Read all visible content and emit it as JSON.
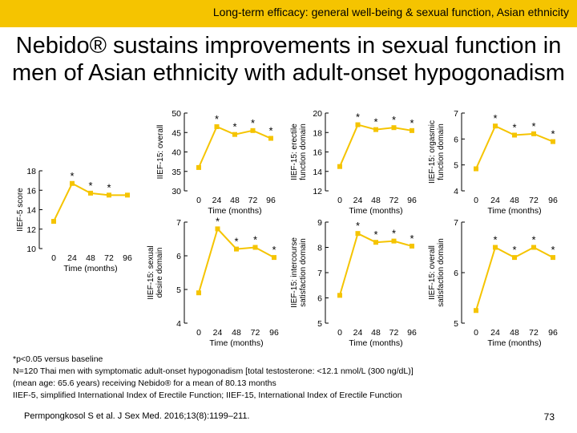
{
  "header": {
    "text": "Long-term efficacy: general well-being & sexual function, Asian ethnicity",
    "background": "#f5c400"
  },
  "title": {
    "line1": "Nebido® sustains improvements in sexual function in",
    "line2": "men of Asian ethnicity with adult-onset hypogonadism"
  },
  "colors": {
    "line": "#f5c400",
    "axis": "#000000"
  },
  "chart_data": [
    {
      "id": "iief5",
      "type": "line",
      "ylabel": "IIEF-5 score",
      "xlabel": "Time (months)",
      "x": [
        0,
        24,
        48,
        72,
        96
      ],
      "values": [
        12.8,
        16.7,
        15.7,
        15.5,
        15.5
      ],
      "significant": [
        "",
        "*",
        "*",
        "*",
        ""
      ],
      "ylim": [
        10,
        18
      ],
      "yticks": [
        10,
        12,
        14,
        16,
        18
      ],
      "xticks": [
        "0",
        "24",
        "48",
        "72",
        "96"
      ]
    },
    {
      "id": "overall",
      "type": "line",
      "ylabel": "IIEF-15: overall",
      "xlabel": "Time (months)",
      "x": [
        0,
        24,
        48,
        72,
        96
      ],
      "values": [
        36,
        46.5,
        44.5,
        45.5,
        43.5
      ],
      "significant": [
        "",
        "*",
        "*",
        "*",
        "*"
      ],
      "ylim": [
        30,
        50
      ],
      "yticks": [
        30,
        35,
        40,
        45,
        50
      ],
      "xticks": [
        "0",
        "24",
        "48",
        "72",
        "96"
      ]
    },
    {
      "id": "erectile",
      "type": "line",
      "ylabel": "IIEF-15: erectile function domain",
      "xlabel": "Time (months)",
      "x": [
        0,
        24,
        48,
        72,
        96
      ],
      "values": [
        14.5,
        18.8,
        18.3,
        18.5,
        18.2
      ],
      "significant": [
        "",
        "*",
        "*",
        "*",
        "*"
      ],
      "ylim": [
        12,
        20
      ],
      "yticks": [
        12,
        14,
        16,
        18,
        20
      ],
      "xticks": [
        "0",
        "24",
        "48",
        "72",
        "96"
      ]
    },
    {
      "id": "orgasmic",
      "type": "line",
      "ylabel": "IIEF-15: orgasmic function domain",
      "xlabel": "Time (months)",
      "x": [
        0,
        24,
        48,
        72,
        96
      ],
      "values": [
        4.85,
        6.5,
        6.15,
        6.2,
        5.9
      ],
      "significant": [
        "",
        "*",
        "*",
        "*",
        "*"
      ],
      "ylim": [
        4,
        7
      ],
      "yticks": [
        4,
        5,
        6,
        7
      ],
      "xticks": [
        "0",
        "24",
        "48",
        "72",
        "96"
      ]
    },
    {
      "id": "desire",
      "type": "line",
      "ylabel": "IIEF-15: sexual desire domain",
      "xlabel": "Time (months)",
      "x": [
        0,
        24,
        48,
        72,
        96
      ],
      "values": [
        4.9,
        6.8,
        6.2,
        6.25,
        5.95
      ],
      "significant": [
        "",
        "*",
        "*",
        "*",
        "*"
      ],
      "ylim": [
        4,
        7
      ],
      "yticks": [
        4,
        5,
        6,
        7
      ],
      "xticks": [
        "0",
        "24",
        "48",
        "72",
        "96"
      ]
    },
    {
      "id": "intercourse",
      "type": "line",
      "ylabel": "IIEF-15: intercourse satisfaction domain",
      "xlabel": "Time (months)",
      "x": [
        0,
        24,
        48,
        72,
        96
      ],
      "values": [
        6.1,
        8.55,
        8.2,
        8.25,
        8.05
      ],
      "significant": [
        "",
        "*",
        "*",
        "*",
        "*"
      ],
      "ylim": [
        5,
        9
      ],
      "yticks": [
        5,
        6,
        7,
        8,
        9
      ],
      "xticks": [
        "0",
        "24",
        "48",
        "72",
        "96"
      ]
    },
    {
      "id": "overall-satisfaction",
      "type": "line",
      "ylabel": "IIEF-15: overall satisfaction domain",
      "xlabel": "Time (months)",
      "x": [
        0,
        24,
        48,
        72,
        96
      ],
      "values": [
        5.25,
        6.5,
        6.3,
        6.5,
        6.3
      ],
      "significant": [
        "",
        "*",
        "*",
        "*",
        "*"
      ],
      "ylim": [
        5,
        7
      ],
      "yticks": [
        5,
        6,
        7
      ],
      "xticks": [
        "0",
        "24",
        "48",
        "72",
        "96"
      ]
    }
  ],
  "footnote": {
    "line1": "*p<0.05 versus baseline",
    "line2": "N=120 Thai men with symptomatic adult-onset hypogonadism [total testosterone: <12.1 nmol/L (300 ng/dL)]",
    "line3": "(mean age: 65.6 years) receiving Nebido® for a mean of 80.13 months",
    "line4": "IIEF-5, simplified International Index of Erectile Function; IIEF-15, International Index of Erectile Function"
  },
  "reference": "Permpongkosol S et al. J Sex Med. 2016;13(8):1199–211.",
  "page_number": "73"
}
